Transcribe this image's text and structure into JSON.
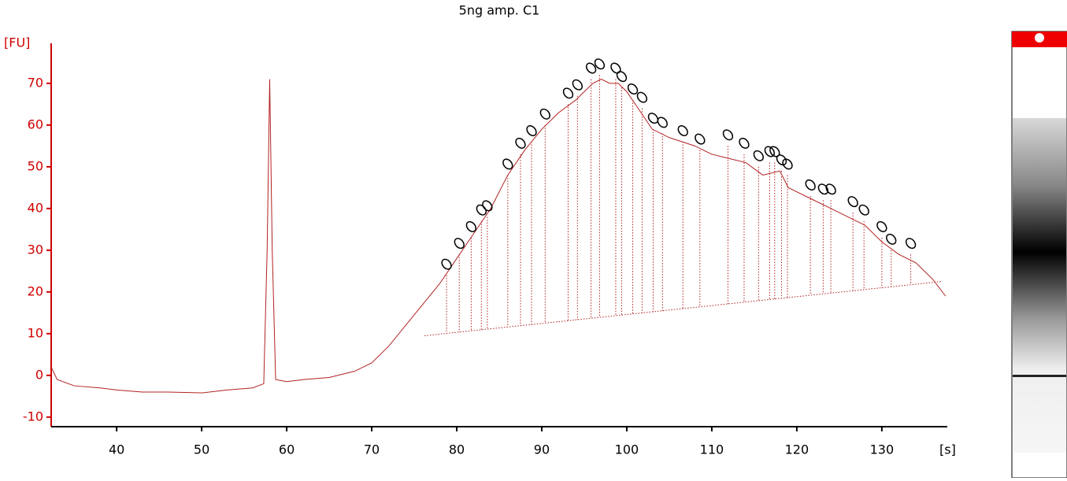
{
  "chart_data": {
    "type": "line",
    "title": "5ng amp. C1",
    "ylabel": "[FU]",
    "xlabel": "[s]",
    "xlim": [
      32.3,
      137.7
    ],
    "ylim": [
      -12.3,
      79.6
    ],
    "xticks": [
      40,
      50,
      60,
      70,
      80,
      90,
      100,
      110,
      120,
      130
    ],
    "yticks": [
      -10,
      0,
      10,
      20,
      30,
      40,
      50,
      60,
      70
    ],
    "series": [
      {
        "color": "#b22222",
        "x": [
          32.3,
          33,
          35,
          38,
          40,
          43,
          46,
          50,
          53,
          56,
          57.3,
          57.7,
          58,
          58.3,
          58.7,
          60,
          62,
          65,
          68,
          70,
          72,
          74,
          76,
          78,
          80,
          82,
          84,
          86,
          88,
          90,
          92,
          94,
          96,
          97,
          98,
          99,
          100,
          101,
          102,
          103,
          105,
          108,
          110,
          112,
          114,
          116,
          118,
          119,
          120,
          122,
          124,
          126,
          128,
          130,
          132,
          134,
          136,
          137.5
        ],
        "values": [
          2,
          -1,
          -2.5,
          -3,
          -3.5,
          -4,
          -4,
          -4.2,
          -3.5,
          -3,
          -2,
          30,
          71,
          30,
          -1,
          -1.5,
          -1,
          -0.5,
          1,
          3,
          7,
          12,
          17,
          22,
          28,
          34,
          40,
          48,
          54,
          59,
          63,
          66,
          70,
          71,
          70,
          70,
          68,
          65,
          62,
          59,
          57,
          55,
          53,
          52,
          51,
          48,
          49,
          45,
          44,
          42,
          40,
          38,
          36,
          32,
          29,
          27,
          23,
          19
        ]
      },
      {
        "type": "peaks",
        "color": "#000000",
        "x": [
          78.8,
          80.3,
          81.7,
          82.9,
          83.6,
          86.0,
          87.5,
          88.8,
          90.4,
          93.1,
          94.2,
          95.8,
          96.8,
          98.7,
          99.4,
          100.7,
          101.8,
          103.1,
          104.2,
          106.6,
          108.6,
          111.9,
          113.8,
          115.5,
          116.8,
          117.4,
          118.2,
          118.9,
          121.6,
          123.1,
          124.0,
          126.6,
          127.9,
          130.0,
          131.1,
          133.4
        ],
        "values": [
          24,
          29,
          33,
          37,
          38,
          48,
          53,
          56,
          60,
          65,
          67,
          71,
          72,
          71,
          69,
          66,
          64,
          59,
          58,
          56,
          54,
          55,
          53,
          50,
          51,
          51,
          49,
          48,
          43,
          42,
          42,
          39,
          37,
          33,
          30,
          29
        ]
      },
      {
        "type": "baseline",
        "color": "#b22222",
        "x": [
          76.2,
          137
        ],
        "values": [
          9.5,
          22.5
        ]
      }
    ]
  }
}
